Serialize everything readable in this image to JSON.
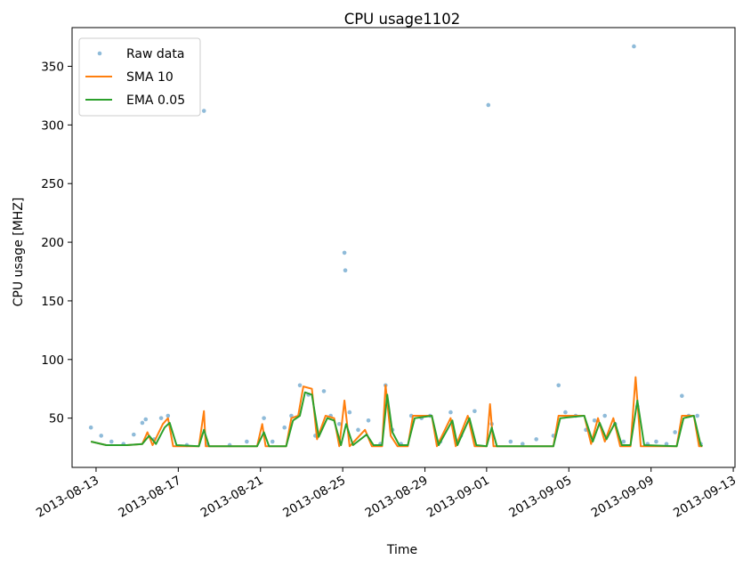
{
  "chart_data": {
    "type": "line",
    "title": "CPU usage1102",
    "xlabel": "Time",
    "ylabel": "CPU usage [MHZ]",
    "x_ticks": [
      "2013-08-13",
      "2013-08-17",
      "2013-08-21",
      "2013-08-25",
      "2013-08-29",
      "2013-09-01",
      "2013-09-05",
      "2013-09-09",
      "2013-09-13"
    ],
    "y_ticks": [
      50,
      100,
      150,
      200,
      250,
      300,
      350
    ],
    "xlim": [
      "2013-08-11T20:00",
      "2013-09-13T02:00"
    ],
    "ylim": [
      8,
      383
    ],
    "grid": false,
    "legend_position": "top-left",
    "colors": {
      "raw": "#1f77b4",
      "sma": "#ff7f0e",
      "ema": "#2ca02c"
    },
    "series": [
      {
        "name": "Raw data",
        "style": "points",
        "points": [
          [
            "2013-08-12T18:00",
            42
          ],
          [
            "2013-08-13T06:00",
            35
          ],
          [
            "2013-08-13T18:00",
            30
          ],
          [
            "2013-08-14T08:00",
            28
          ],
          [
            "2013-08-14T20:00",
            36
          ],
          [
            "2013-08-15T06:00",
            46
          ],
          [
            "2013-08-15T10:00",
            49
          ],
          [
            "2013-08-15T20:00",
            32
          ],
          [
            "2013-08-16T04:00",
            50
          ],
          [
            "2013-08-16T12:00",
            52
          ],
          [
            "2013-08-17T10:00",
            27
          ],
          [
            "2013-08-18T06:00",
            312
          ],
          [
            "2013-08-18T10:00",
            28
          ],
          [
            "2013-08-19T12:00",
            27
          ],
          [
            "2013-08-20T08:00",
            30
          ],
          [
            "2013-08-21T04:00",
            50
          ],
          [
            "2013-08-21T14:00",
            30
          ],
          [
            "2013-08-22T04:00",
            42
          ],
          [
            "2013-08-22T12:00",
            52
          ],
          [
            "2013-08-22T22:00",
            78
          ],
          [
            "2013-08-23T08:00",
            70
          ],
          [
            "2013-08-23T16:00",
            35
          ],
          [
            "2013-08-24T02:00",
            73
          ],
          [
            "2013-08-24T10:00",
            52
          ],
          [
            "2013-08-24T20:00",
            45
          ],
          [
            "2013-08-25T02:00",
            191
          ],
          [
            "2013-08-25T03:00",
            176
          ],
          [
            "2013-08-25T08:00",
            55
          ],
          [
            "2013-08-25T18:00",
            40
          ],
          [
            "2013-08-26T06:00",
            48
          ],
          [
            "2013-08-26T20:00",
            28
          ],
          [
            "2013-08-27T02:00",
            78
          ],
          [
            "2013-08-27T10:00",
            40
          ],
          [
            "2013-08-27T20:00",
            28
          ],
          [
            "2013-08-28T08:00",
            52
          ],
          [
            "2013-08-28T20:00",
            50
          ],
          [
            "2013-08-29T06:00",
            52
          ],
          [
            "2013-08-29T18:00",
            30
          ],
          [
            "2013-08-30T06:00",
            55
          ],
          [
            "2013-08-30T18:00",
            35
          ],
          [
            "2013-08-31T10:00",
            56
          ],
          [
            "2013-09-01T02:00",
            317
          ],
          [
            "2013-09-01T06:00",
            45
          ],
          [
            "2013-09-02T04:00",
            30
          ],
          [
            "2013-09-02T18:00",
            28
          ],
          [
            "2013-09-03T10:00",
            32
          ],
          [
            "2013-09-04T06:00",
            35
          ],
          [
            "2013-09-04T12:00",
            78
          ],
          [
            "2013-09-04T20:00",
            55
          ],
          [
            "2013-09-05T08:00",
            52
          ],
          [
            "2013-09-05T20:00",
            40
          ],
          [
            "2013-09-06T06:00",
            48
          ],
          [
            "2013-09-06T18:00",
            52
          ],
          [
            "2013-09-07T06:00",
            45
          ],
          [
            "2013-09-07T16:00",
            30
          ],
          [
            "2013-09-08T04:00",
            367
          ],
          [
            "2013-09-08T08:00",
            60
          ],
          [
            "2013-09-08T20:00",
            28
          ],
          [
            "2013-09-09T06:00",
            30
          ],
          [
            "2013-09-09T18:00",
            28
          ],
          [
            "2013-09-10T04:00",
            38
          ],
          [
            "2013-09-10T12:00",
            69
          ],
          [
            "2013-09-10T20:00",
            52
          ],
          [
            "2013-09-11T06:00",
            52
          ],
          [
            "2013-09-11T10:00",
            28
          ]
        ]
      },
      {
        "name": "SMA 10",
        "style": "line",
        "points": [
          [
            "2013-08-12T18:00",
            30
          ],
          [
            "2013-08-13T12:00",
            27
          ],
          [
            "2013-08-14T12:00",
            27
          ],
          [
            "2013-08-15T06:00",
            28
          ],
          [
            "2013-08-15T12:00",
            38
          ],
          [
            "2013-08-15T18:00",
            27
          ],
          [
            "2013-08-16T06:00",
            45
          ],
          [
            "2013-08-16T12:00",
            50
          ],
          [
            "2013-08-16T18:00",
            26
          ],
          [
            "2013-08-18T00:00",
            26
          ],
          [
            "2013-08-18T06:00",
            56
          ],
          [
            "2013-08-18T08:00",
            26
          ],
          [
            "2013-08-20T20:00",
            26
          ],
          [
            "2013-08-21T02:00",
            45
          ],
          [
            "2013-08-21T06:00",
            26
          ],
          [
            "2013-08-22T06:00",
            26
          ],
          [
            "2013-08-22T12:00",
            50
          ],
          [
            "2013-08-22T20:00",
            52
          ],
          [
            "2013-08-23T02:00",
            77
          ],
          [
            "2013-08-23T12:00",
            75
          ],
          [
            "2013-08-23T18:00",
            32
          ],
          [
            "2013-08-24T04:00",
            52
          ],
          [
            "2013-08-24T14:00",
            50
          ],
          [
            "2013-08-24T20:00",
            26
          ],
          [
            "2013-08-25T02:00",
            65
          ],
          [
            "2013-08-25T08:00",
            26
          ],
          [
            "2013-08-26T02:00",
            40
          ],
          [
            "2013-08-26T10:00",
            26
          ],
          [
            "2013-08-26T22:00",
            26
          ],
          [
            "2013-08-27T02:00",
            78
          ],
          [
            "2013-08-27T08:00",
            35
          ],
          [
            "2013-08-27T16:00",
            26
          ],
          [
            "2013-08-28T04:00",
            26
          ],
          [
            "2013-08-28T10:00",
            52
          ],
          [
            "2013-08-29T08:00",
            52
          ],
          [
            "2013-08-29T14:00",
            26
          ],
          [
            "2013-08-30T06:00",
            50
          ],
          [
            "2013-08-30T12:00",
            26
          ],
          [
            "2013-08-31T02:00",
            52
          ],
          [
            "2013-08-31T10:00",
            26
          ],
          [
            "2013-09-01T00:00",
            26
          ],
          [
            "2013-09-01T04:00",
            62
          ],
          [
            "2013-09-01T08:00",
            26
          ],
          [
            "2013-09-04T06:00",
            26
          ],
          [
            "2013-09-04T12:00",
            52
          ],
          [
            "2013-09-05T18:00",
            52
          ],
          [
            "2013-09-06T02:00",
            28
          ],
          [
            "2013-09-06T10:00",
            50
          ],
          [
            "2013-09-06T18:00",
            30
          ],
          [
            "2013-09-07T04:00",
            50
          ],
          [
            "2013-09-07T12:00",
            26
          ],
          [
            "2013-09-08T00:00",
            26
          ],
          [
            "2013-09-08T06:00",
            85
          ],
          [
            "2013-09-08T12:00",
            26
          ],
          [
            "2013-09-10T06:00",
            26
          ],
          [
            "2013-09-10T12:00",
            52
          ],
          [
            "2013-09-11T02:00",
            52
          ],
          [
            "2013-09-11T08:00",
            26
          ],
          [
            "2013-09-11T12:00",
            26
          ]
        ]
      },
      {
        "name": "EMA 0.05",
        "style": "line",
        "points": [
          [
            "2013-08-12T18:00",
            30
          ],
          [
            "2013-08-13T12:00",
            27
          ],
          [
            "2013-08-14T12:00",
            27
          ],
          [
            "2013-08-15T06:00",
            28
          ],
          [
            "2013-08-15T14:00",
            35
          ],
          [
            "2013-08-15T22:00",
            28
          ],
          [
            "2013-08-16T08:00",
            42
          ],
          [
            "2013-08-16T14:00",
            46
          ],
          [
            "2013-08-16T22:00",
            27
          ],
          [
            "2013-08-18T00:00",
            26
          ],
          [
            "2013-08-18T06:00",
            40
          ],
          [
            "2013-08-18T12:00",
            26
          ],
          [
            "2013-08-20T20:00",
            26
          ],
          [
            "2013-08-21T04:00",
            38
          ],
          [
            "2013-08-21T10:00",
            26
          ],
          [
            "2013-08-22T06:00",
            26
          ],
          [
            "2013-08-22T14:00",
            48
          ],
          [
            "2013-08-22T22:00",
            52
          ],
          [
            "2013-08-23T04:00",
            72
          ],
          [
            "2013-08-23T12:00",
            70
          ],
          [
            "2013-08-23T20:00",
            34
          ],
          [
            "2013-08-24T06:00",
            50
          ],
          [
            "2013-08-24T14:00",
            48
          ],
          [
            "2013-08-24T22:00",
            27
          ],
          [
            "2013-08-25T04:00",
            45
          ],
          [
            "2013-08-25T12:00",
            27
          ],
          [
            "2013-08-26T04:00",
            36
          ],
          [
            "2013-08-26T12:00",
            27
          ],
          [
            "2013-08-26T22:00",
            27
          ],
          [
            "2013-08-27T04:00",
            70
          ],
          [
            "2013-08-27T10:00",
            38
          ],
          [
            "2013-08-27T18:00",
            27
          ],
          [
            "2013-08-28T04:00",
            27
          ],
          [
            "2013-08-28T12:00",
            50
          ],
          [
            "2013-08-29T08:00",
            52
          ],
          [
            "2013-08-29T16:00",
            27
          ],
          [
            "2013-08-30T08:00",
            48
          ],
          [
            "2013-08-30T14:00",
            27
          ],
          [
            "2013-08-31T04:00",
            50
          ],
          [
            "2013-08-31T12:00",
            27
          ],
          [
            "2013-09-01T00:00",
            26
          ],
          [
            "2013-09-01T06:00",
            42
          ],
          [
            "2013-09-01T12:00",
            26
          ],
          [
            "2013-09-04T06:00",
            26
          ],
          [
            "2013-09-04T14:00",
            50
          ],
          [
            "2013-09-05T18:00",
            52
          ],
          [
            "2013-09-06T04:00",
            30
          ],
          [
            "2013-09-06T12:00",
            46
          ],
          [
            "2013-09-06T20:00",
            32
          ],
          [
            "2013-09-07T06:00",
            46
          ],
          [
            "2013-09-07T14:00",
            27
          ],
          [
            "2013-09-08T00:00",
            27
          ],
          [
            "2013-09-08T08:00",
            65
          ],
          [
            "2013-09-08T16:00",
            27
          ],
          [
            "2013-09-10T06:00",
            26
          ],
          [
            "2013-09-10T14:00",
            50
          ],
          [
            "2013-09-11T02:00",
            52
          ],
          [
            "2013-09-11T10:00",
            27
          ],
          [
            "2013-09-11T12:00",
            26
          ]
        ]
      }
    ]
  }
}
